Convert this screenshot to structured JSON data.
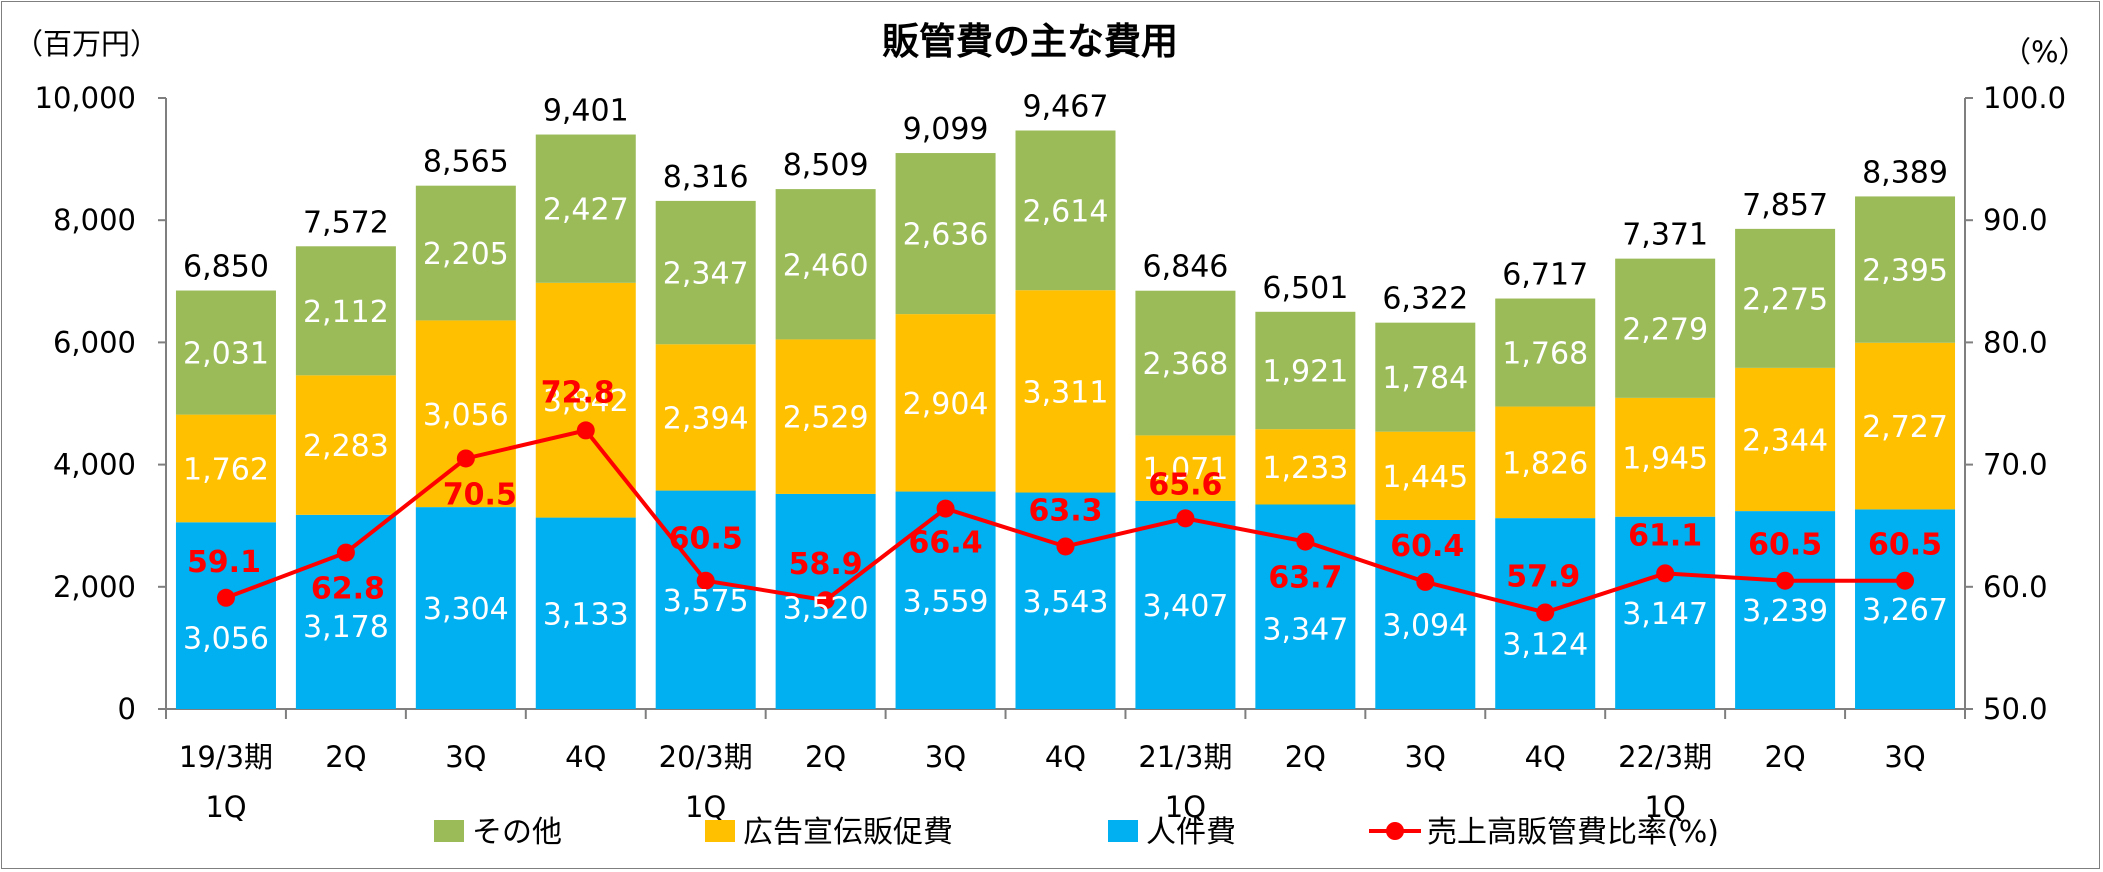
{
  "chart_data": {
    "type": "bar",
    "stacked": true,
    "title": "販管費の主な費用",
    "y_left_unit": "（百万円）",
    "y_right_unit": "（%）",
    "ylim_left": [
      0,
      10000
    ],
    "ylim_right": [
      50,
      100
    ],
    "yticks_left": [
      "0",
      "2,000",
      "4,000",
      "6,000",
      "8,000",
      "10,000"
    ],
    "yticks_right": [
      "50.0",
      "60.0",
      "70.0",
      "80.0",
      "90.0",
      "100.0"
    ],
    "grid": false,
    "legend_position": "bottom",
    "categories": [
      [
        "19/3期",
        "1Q"
      ],
      [
        "2Q"
      ],
      [
        "3Q"
      ],
      [
        "4Q"
      ],
      [
        "20/3期",
        "1Q"
      ],
      [
        "2Q"
      ],
      [
        "3Q"
      ],
      [
        "4Q"
      ],
      [
        "21/3期",
        "1Q"
      ],
      [
        "2Q"
      ],
      [
        "3Q"
      ],
      [
        "4Q"
      ],
      [
        "22/3期",
        "1Q"
      ],
      [
        "2Q"
      ],
      [
        "3Q"
      ]
    ],
    "series": [
      {
        "name": "人件費",
        "color": "#00b0f0",
        "label_color": "#ffffff",
        "values": [
          3056,
          3178,
          3304,
          3133,
          3575,
          3520,
          3559,
          3543,
          3407,
          3347,
          3094,
          3124,
          3147,
          3239,
          3267
        ],
        "labels": [
          "3,056",
          "3,178",
          "3,304",
          "3,133",
          "3,575",
          "3,520",
          "3,559",
          "3,543",
          "3,407",
          "3,347",
          "3,094",
          "3,124",
          "3,147",
          "3,239",
          "3,267"
        ]
      },
      {
        "name": "広告宣伝販促費",
        "color": "#ffc000",
        "label_color": "#ffffff",
        "values": [
          1762,
          2283,
          3056,
          3842,
          2394,
          2529,
          2904,
          3311,
          1071,
          1233,
          1445,
          1826,
          1945,
          2344,
          2727
        ],
        "labels": [
          "1,762",
          "2,283",
          "3,056",
          "3,842",
          "2,394",
          "2,529",
          "2,904",
          "3,311",
          "1,071",
          "1,233",
          "1,445",
          "1,826",
          "1,945",
          "2,344",
          "2,727"
        ]
      },
      {
        "name": "その他",
        "color": "#9bbb59",
        "label_color": "#ffffff",
        "values": [
          2031,
          2112,
          2205,
          2427,
          2347,
          2460,
          2636,
          2614,
          2368,
          1921,
          1784,
          1768,
          2279,
          2275,
          2395
        ],
        "labels": [
          "2,031",
          "2,112",
          "2,205",
          "2,427",
          "2,347",
          "2,460",
          "2,636",
          "2,614",
          "2,368",
          "1,921",
          "1,784",
          "1,768",
          "2,279",
          "2,275",
          "2,395"
        ]
      }
    ],
    "totals": {
      "values": [
        6850,
        7572,
        8565,
        9401,
        8316,
        8509,
        9099,
        9467,
        6846,
        6501,
        6322,
        6717,
        7371,
        7857,
        8389
      ],
      "labels": [
        "6,850",
        "7,572",
        "8,565",
        "9,401",
        "8,316",
        "8,509",
        "9,099",
        "9,467",
        "6,846",
        "6,501",
        "6,322",
        "6,717",
        "7,371",
        "7,857",
        "8,389"
      ]
    },
    "line": {
      "name": "売上高販管費比率(%)",
      "axis": "right",
      "color": "#ff0000",
      "values": [
        59.1,
        62.8,
        70.5,
        72.8,
        60.5,
        58.9,
        66.4,
        63.3,
        65.6,
        63.7,
        60.4,
        57.9,
        61.1,
        60.5,
        60.5
      ],
      "labels": [
        "59.1",
        "62.8",
        "70.5",
        "72.8",
        "60.5",
        "58.9",
        "66.4",
        "63.3",
        "65.6",
        "63.7",
        "60.4",
        "57.9",
        "61.1",
        "60.5",
        "60.5"
      ]
    },
    "legend": [
      {
        "name": "その他",
        "type": "box",
        "color": "#9bbb59"
      },
      {
        "name": "広告宣伝販促費",
        "type": "box",
        "color": "#ffc000"
      },
      {
        "name": "人件費",
        "type": "box",
        "color": "#00b0f0"
      },
      {
        "name": "売上高販管費比率(%)",
        "type": "line",
        "color": "#ff0000"
      }
    ]
  }
}
